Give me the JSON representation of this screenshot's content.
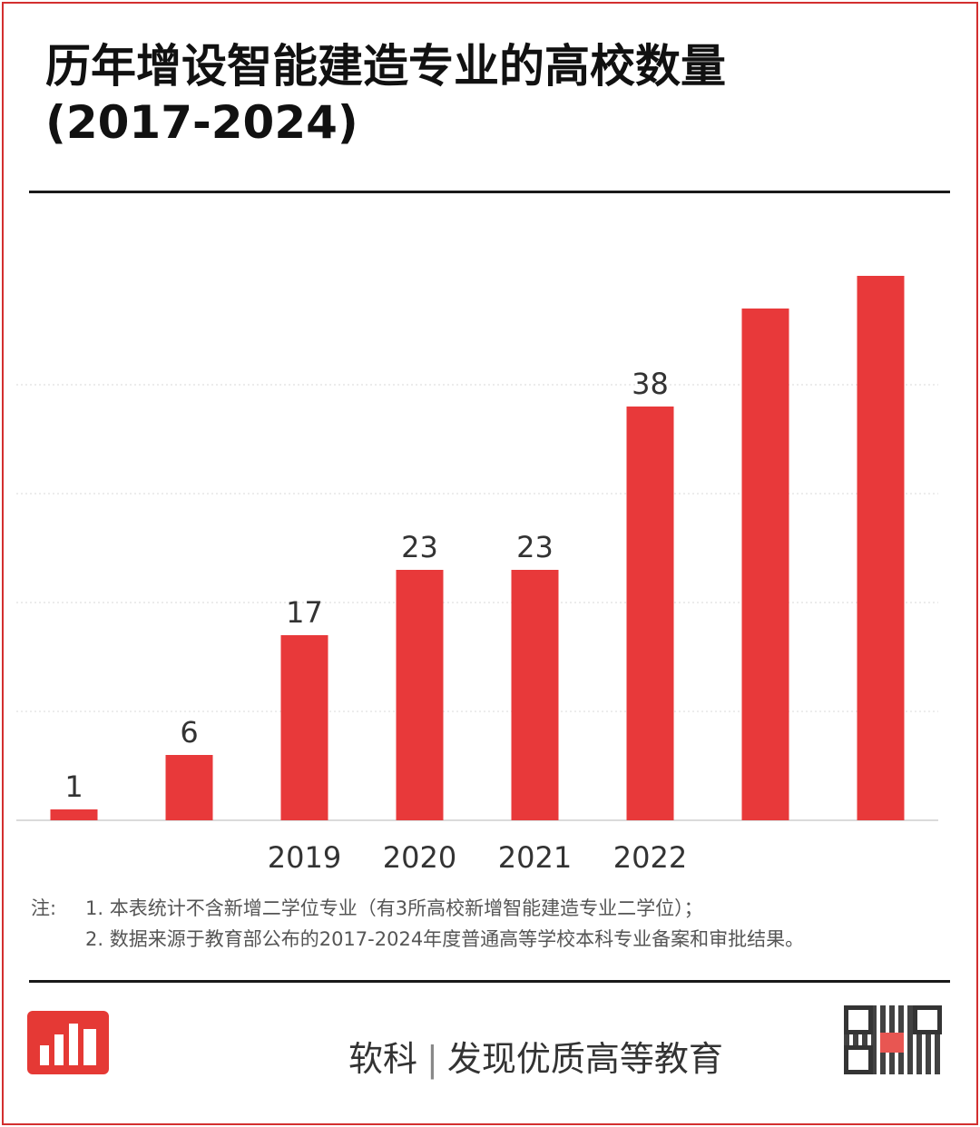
{
  "title_line1": "历年增设智能建造专业的高校数量",
  "title_line2": "(2017-2024)",
  "colors": {
    "bar": "#e8393a",
    "border": "#d32f2f",
    "grid": "#d9d9d9"
  },
  "chart_data": {
    "type": "bar",
    "categories": [
      "",
      "",
      "2019",
      "2020",
      "2021",
      "2022",
      "",
      ""
    ],
    "values": [
      1,
      6,
      17,
      23,
      23,
      38,
      47,
      50
    ],
    "data_labels": [
      "1",
      "6",
      "17",
      "23",
      "23",
      "38",
      "",
      ""
    ],
    "ylim": [
      0,
      50
    ],
    "grid": true
  },
  "notes": {
    "prefix": "注:",
    "line1": "1. 本表统计不含新增二学位专业（有3所高校新增智能建造专业二学位）；",
    "line2": "2. 数据来源于教育部公布的2017-2024年度普通高等学校本科专业备案和审批结果。"
  },
  "footer": {
    "brand": "软科",
    "separator": "|",
    "slogan": "发现优质高等教育"
  },
  "icons": {
    "logo": "shanghai-ranking-logo",
    "qr": "qr-code-icon"
  }
}
